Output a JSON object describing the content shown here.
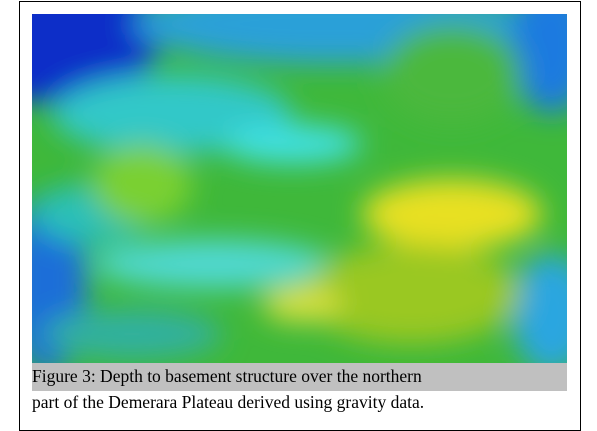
{
  "figure": {
    "caption": {
      "lines": [
        "Figure 3:  Depth to basement structure over the northern",
        "part of the Demerara Plateau derived using gravity data."
      ]
    }
  }
}
